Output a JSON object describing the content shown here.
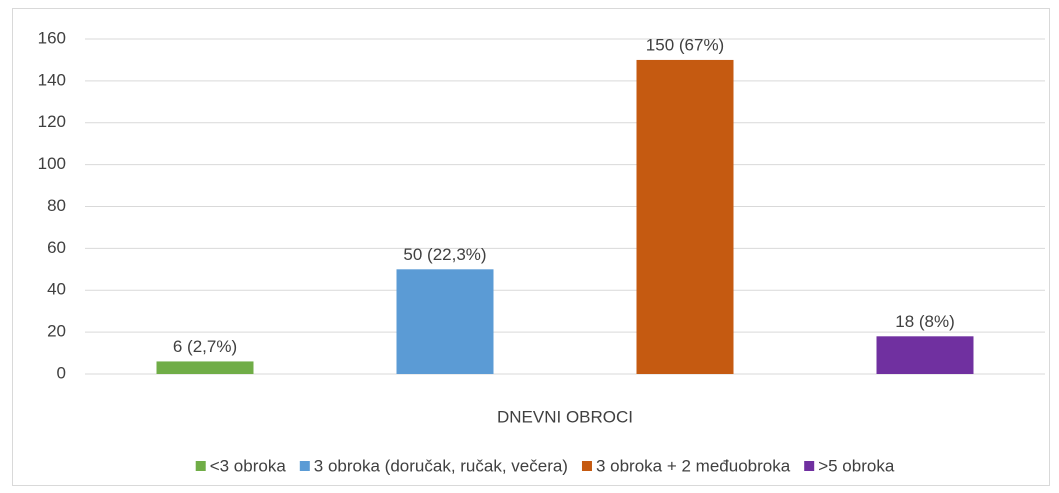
{
  "chart_data": {
    "type": "bar",
    "categories": [
      "DNEVNI OBROCI"
    ],
    "series": [
      {
        "name": "<3 obroka",
        "color": "#70ad47",
        "values": [
          6
        ],
        "value_labels": [
          "6 (2,7%)"
        ]
      },
      {
        "name": "3 obroka (doručak, ručak, večera)",
        "color": "#5b9bd5",
        "values": [
          50
        ],
        "value_labels": [
          "50 (22,3%)"
        ]
      },
      {
        "name": "3 obroka + 2 međuobroka",
        "color": "#c55a11",
        "values": [
          150
        ],
        "value_labels": [
          "150 (67%)"
        ]
      },
      {
        "name": ">5 obroka",
        "color": "#7030a0",
        "values": [
          18
        ],
        "value_labels": [
          "18 (8%)"
        ]
      }
    ],
    "ylim": [
      0,
      160
    ],
    "yticks": [
      0,
      20,
      40,
      60,
      80,
      100,
      120,
      140,
      160
    ],
    "grid": true,
    "legend": "bottom"
  }
}
